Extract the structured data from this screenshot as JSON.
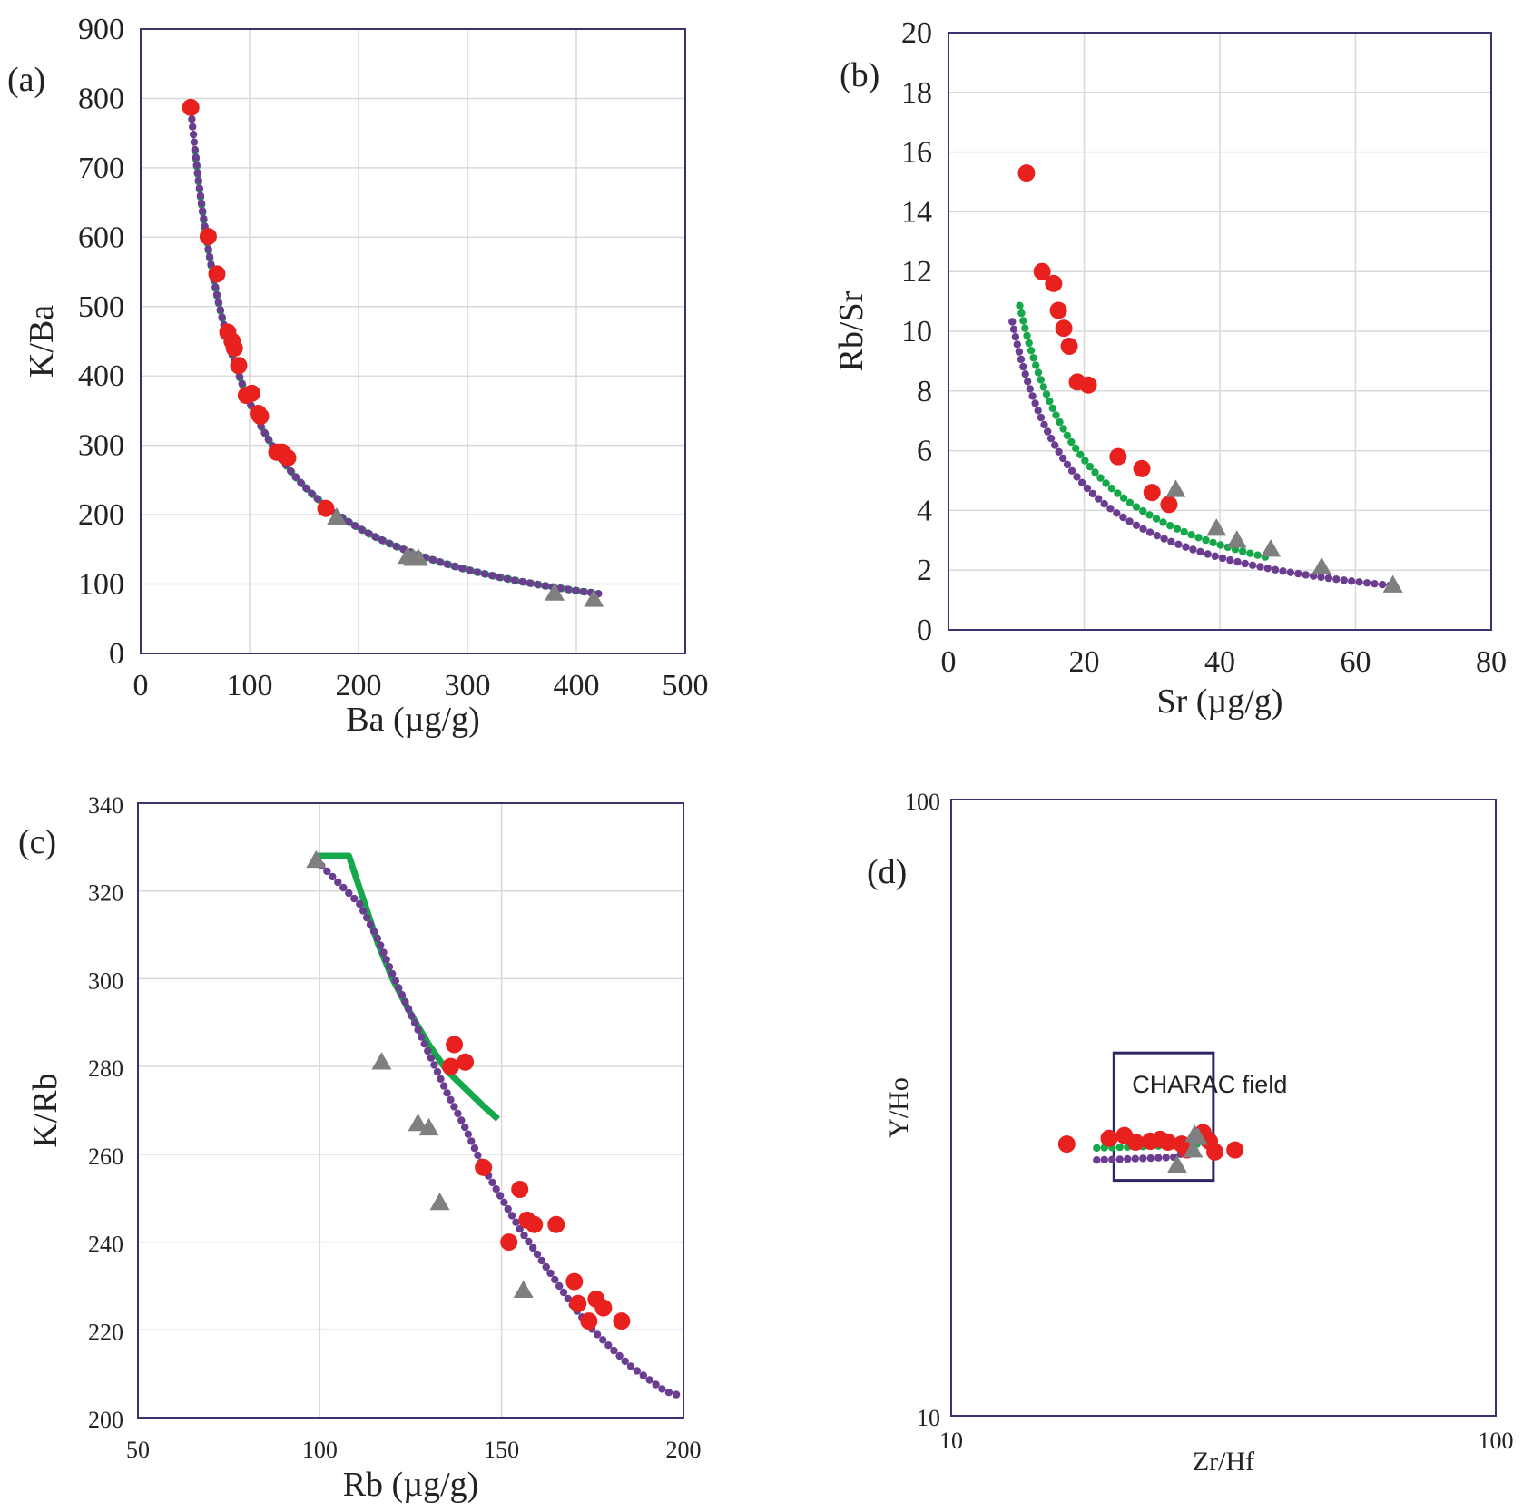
{
  "colors": {
    "red": "#e8211f",
    "green": "#14a84a",
    "purple": "#6a3d91",
    "gray": "#7f7f7f",
    "frame": "#3b3271",
    "box": "#2c2664"
  },
  "chart_data": [
    {
      "id": "a",
      "type": "scatter",
      "panel_label": "(a)",
      "xlabel": "Ba (µg/g)",
      "ylabel": "K/Ba",
      "xlim": [
        0,
        500
      ],
      "ylim": [
        0,
        900
      ],
      "xticks": [
        0,
        100,
        200,
        300,
        400,
        500
      ],
      "yticks": [
        0,
        100,
        200,
        300,
        400,
        500,
        600,
        700,
        800,
        900
      ],
      "xscale": "linear",
      "yscale": "linear",
      "grid": true,
      "series": [
        {
          "name": "red circles",
          "marker": "circle",
          "color": "red",
          "points": [
            [
              46,
              787
            ],
            [
              62,
              601
            ],
            [
              70,
              547
            ],
            [
              80,
              463
            ],
            [
              84,
              450
            ],
            [
              86,
              440
            ],
            [
              90,
              415
            ],
            [
              97,
              372
            ],
            [
              102,
              375
            ],
            [
              108,
              346
            ],
            [
              110,
              342
            ],
            [
              125,
              290
            ],
            [
              130,
              290
            ],
            [
              135,
              282
            ],
            [
              170,
              209
            ]
          ]
        },
        {
          "name": "gray triangles",
          "marker": "triangle",
          "color": "gray",
          "points": [
            [
              180,
              196
            ],
            [
              245,
              140
            ],
            [
              250,
              137
            ],
            [
              255,
              137
            ],
            [
              380,
              87
            ],
            [
              416,
              78
            ]
          ]
        },
        {
          "name": "green model",
          "marker": "dotted-line",
          "color": "green",
          "func": {
            "kind": "power",
            "a": 36200,
            "b": -1,
            "xmin": 50,
            "xmax": 420
          }
        },
        {
          "name": "purple model",
          "marker": "dotted-line",
          "color": "purple",
          "func": {
            "kind": "power",
            "a": 36200,
            "b": -1,
            "xmin": 47,
            "xmax": 425
          }
        }
      ]
    },
    {
      "id": "b",
      "type": "scatter",
      "panel_label": "(b)",
      "xlabel": "Sr (µg/g)",
      "ylabel": "Rb/Sr",
      "xlim": [
        0,
        80
      ],
      "ylim": [
        0,
        20
      ],
      "xticks": [
        0,
        20,
        40,
        60,
        80
      ],
      "yticks": [
        0,
        2,
        4,
        6,
        8,
        10,
        12,
        14,
        16,
        18,
        20
      ],
      "xscale": "linear",
      "yscale": "linear",
      "grid": true,
      "series": [
        {
          "name": "red circles",
          "marker": "circle",
          "color": "red",
          "points": [
            [
              11.5,
              15.3
            ],
            [
              13.8,
              12.0
            ],
            [
              15.5,
              11.6
            ],
            [
              16.2,
              10.7
            ],
            [
              17.0,
              10.1
            ],
            [
              17.8,
              9.5
            ],
            [
              19.0,
              8.3
            ],
            [
              20.6,
              8.2
            ],
            [
              25.0,
              5.8
            ],
            [
              28.5,
              5.4
            ],
            [
              30.0,
              4.6
            ],
            [
              32.5,
              4.2
            ]
          ]
        },
        {
          "name": "gray triangles",
          "marker": "triangle",
          "color": "gray",
          "points": [
            [
              33.5,
              4.7
            ],
            [
              39.5,
              3.4
            ],
            [
              42.5,
              3.0
            ],
            [
              47.5,
              2.7
            ],
            [
              55,
              2.1
            ],
            [
              65.5,
              1.5
            ]
          ]
        },
        {
          "name": "green model",
          "marker": "dotted-line",
          "color": "green",
          "func": {
            "kind": "power",
            "a": 114,
            "b": -1,
            "xmin": 10.5,
            "xmax": 47
          }
        },
        {
          "name": "purple model",
          "marker": "dotted-line",
          "color": "purple",
          "func": {
            "kind": "power",
            "a": 97,
            "b": -1,
            "xmin": 9.4,
            "xmax": 66
          }
        }
      ]
    },
    {
      "id": "c",
      "type": "scatter",
      "panel_label": "(c)",
      "xlabel": "Rb (µg/g)",
      "ylabel": "K/Rb",
      "xlim": [
        50,
        200
      ],
      "ylim": [
        200,
        340
      ],
      "xticks": [
        50,
        100,
        150,
        200
      ],
      "yticks": [
        200,
        220,
        240,
        260,
        280,
        300,
        320,
        340
      ],
      "xscale": "linear",
      "yscale": "linear",
      "grid": true,
      "series": [
        {
          "name": "red circles",
          "marker": "circle",
          "color": "red",
          "points": [
            [
              137,
              285
            ],
            [
              136,
              280
            ],
            [
              140,
              281
            ],
            [
              145,
              257
            ],
            [
              152,
              240
            ],
            [
              155,
              252
            ],
            [
              157,
              245
            ],
            [
              159,
              244
            ],
            [
              165,
              244
            ],
            [
              170,
              231
            ],
            [
              171,
              226
            ],
            [
              174,
              222
            ],
            [
              176,
              227
            ],
            [
              178,
              225
            ],
            [
              183,
              222
            ]
          ]
        },
        {
          "name": "gray triangles",
          "marker": "triangle",
          "color": "gray",
          "points": [
            [
              99,
              327
            ],
            [
              117,
              281
            ],
            [
              127,
              267
            ],
            [
              130,
              266
            ],
            [
              133,
              249
            ],
            [
              156,
              229
            ]
          ]
        },
        {
          "name": "green model",
          "marker": "solid-line",
          "color": "green",
          "points": [
            [
              99,
              328
            ],
            [
              108,
              328
            ],
            [
              112,
              318
            ],
            [
              116,
              308
            ],
            [
              120,
              300
            ],
            [
              125,
              292
            ],
            [
              130,
              285
            ],
            [
              135,
              279
            ],
            [
              140,
              275
            ],
            [
              145,
              271
            ],
            [
              149,
              268
            ]
          ]
        },
        {
          "name": "purple model",
          "marker": "dotted-line",
          "color": "purple",
          "points": [
            [
              99,
              327
            ],
            [
              105,
              322
            ],
            [
              111,
              317
            ],
            [
              116,
              309
            ],
            [
              120,
              301
            ],
            [
              125,
              292
            ],
            [
              130,
              283
            ],
            [
              135,
              274
            ],
            [
              140,
              266
            ],
            [
              145,
              257
            ],
            [
              150,
              250
            ],
            [
              155,
              243
            ],
            [
              160,
              237
            ],
            [
              165,
              231
            ],
            [
              170,
              225
            ],
            [
              175,
              220
            ],
            [
              180,
              216
            ],
            [
              185,
              212
            ],
            [
              190,
              209
            ],
            [
              195,
              206
            ],
            [
              199,
              205
            ]
          ]
        }
      ]
    },
    {
      "id": "d",
      "type": "scatter",
      "panel_label": "(d)",
      "xlabel": "Zr/Hf",
      "ylabel": "Y/Ho",
      "xlim": [
        10,
        100
      ],
      "ylim": [
        10,
        100
      ],
      "xticks": [
        10,
        100
      ],
      "yticks": [
        10,
        100
      ],
      "xscale": "log",
      "yscale": "log",
      "grid": false,
      "annotation": {
        "text": "CHARAC field",
        "xrange": [
          19.9,
          30.3
        ],
        "yrange": [
          24.1,
          38.8
        ]
      },
      "series": [
        {
          "name": "red circles",
          "marker": "circle",
          "color": "red",
          "points": [
            [
              16.3,
              27.6
            ],
            [
              19.5,
              28.2
            ],
            [
              20.8,
              28.5
            ],
            [
              21.8,
              27.8
            ],
            [
              23.2,
              27.9
            ],
            [
              24.2,
              28.1
            ],
            [
              25.0,
              27.8
            ],
            [
              26.5,
              27.6
            ],
            [
              27.1,
              27.0
            ],
            [
              29.0,
              28.8
            ],
            [
              29.8,
              27.9
            ],
            [
              30.5,
              26.8
            ],
            [
              33.2,
              27.0
            ]
          ]
        },
        {
          "name": "gray triangles",
          "marker": "triangle",
          "color": "gray",
          "points": [
            [
              26.0,
              25.5
            ],
            [
              27.8,
              27.0
            ],
            [
              28.4,
              28.3
            ],
            [
              28.0,
              28.6
            ]
          ]
        },
        {
          "name": "green model",
          "marker": "dotted-line",
          "color": "green",
          "points": [
            [
              18.5,
              27.2
            ],
            [
              21,
              27.3
            ],
            [
              24,
              27.4
            ],
            [
              27,
              27.5
            ],
            [
              29.5,
              27.7
            ]
          ]
        },
        {
          "name": "purple model",
          "marker": "dotted-line",
          "color": "purple",
          "points": [
            [
              18.5,
              26.0
            ],
            [
              21,
              26.1
            ],
            [
              23.5,
              26.2
            ],
            [
              26.0,
              26.3
            ],
            [
              27.2,
              27.2
            ],
            [
              28.6,
              28.3
            ],
            [
              29.7,
              29.0
            ]
          ]
        }
      ]
    }
  ]
}
